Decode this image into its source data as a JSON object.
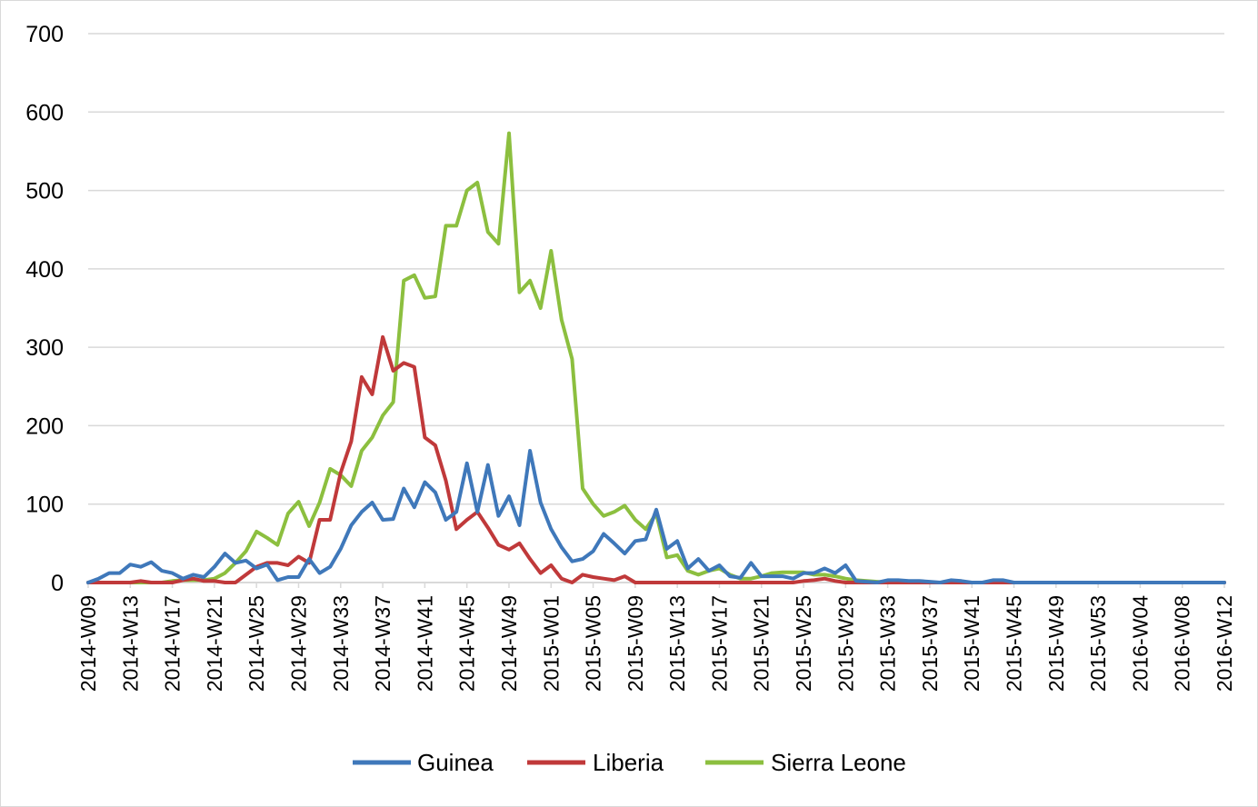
{
  "chart_data": {
    "type": "line",
    "title": "",
    "xlabel": "",
    "ylabel": "",
    "ylim": [
      0,
      700
    ],
    "y_ticks": [
      0,
      100,
      200,
      300,
      400,
      500,
      600,
      700
    ],
    "grid": "horizontal",
    "legend": "bottom",
    "x": [
      "2014-W09",
      "2014-W10",
      "2014-W11",
      "2014-W12",
      "2014-W13",
      "2014-W14",
      "2014-W15",
      "2014-W16",
      "2014-W17",
      "2014-W18",
      "2014-W19",
      "2014-W20",
      "2014-W21",
      "2014-W22",
      "2014-W23",
      "2014-W24",
      "2014-W25",
      "2014-W26",
      "2014-W27",
      "2014-W28",
      "2014-W29",
      "2014-W30",
      "2014-W31",
      "2014-W32",
      "2014-W33",
      "2014-W34",
      "2014-W35",
      "2014-W36",
      "2014-W37",
      "2014-W38",
      "2014-W39",
      "2014-W40",
      "2014-W41",
      "2014-W42",
      "2014-W43",
      "2014-W44",
      "2014-W45",
      "2014-W46",
      "2014-W47",
      "2014-W48",
      "2014-W49",
      "2014-W50",
      "2014-W51",
      "2014-W52",
      "2015-W01",
      "2015-W02",
      "2015-W03",
      "2015-W04",
      "2015-W05",
      "2015-W06",
      "2015-W07",
      "2015-W08",
      "2015-W09",
      "2015-W10",
      "2015-W11",
      "2015-W12",
      "2015-W13",
      "2015-W14",
      "2015-W15",
      "2015-W16",
      "2015-W17",
      "2015-W18",
      "2015-W19",
      "2015-W20",
      "2015-W21",
      "2015-W22",
      "2015-W23",
      "2015-W24",
      "2015-W25",
      "2015-W26",
      "2015-W27",
      "2015-W28",
      "2015-W29",
      "2015-W30",
      "2015-W31",
      "2015-W32",
      "2015-W33",
      "2015-W34",
      "2015-W35",
      "2015-W36",
      "2015-W37",
      "2015-W38",
      "2015-W39",
      "2015-W40",
      "2015-W41",
      "2015-W42",
      "2015-W43",
      "2015-W44",
      "2015-W45",
      "2015-W46",
      "2015-W47",
      "2015-W48",
      "2015-W49",
      "2015-W50",
      "2015-W51",
      "2015-W52",
      "2015-W53",
      "2016-W01",
      "2016-W02",
      "2016-W03",
      "2016-W04",
      "2016-W05",
      "2016-W06",
      "2016-W07",
      "2016-W08",
      "2016-W09",
      "2016-W10",
      "2016-W11",
      "2016-W12"
    ],
    "x_tick_labels": [
      "2014-W09",
      "2014-W13",
      "2014-W17",
      "2014-W21",
      "2014-W25",
      "2014-W29",
      "2014-W33",
      "2014-W37",
      "2014-W41",
      "2014-W45",
      "2014-W49",
      "2015-W01",
      "2015-W05",
      "2015-W09",
      "2015-W13",
      "2015-W17",
      "2015-W21",
      "2015-W25",
      "2015-W29",
      "2015-W33",
      "2015-W37",
      "2015-W41",
      "2015-W45",
      "2015-W49",
      "2015-W53",
      "2016-W04",
      "2016-W08",
      "2016-W12"
    ],
    "series": [
      {
        "name": "Guinea",
        "color": "#3f78ba",
        "values": [
          0,
          5,
          12,
          12,
          23,
          20,
          26,
          15,
          12,
          5,
          10,
          7,
          20,
          37,
          25,
          28,
          18,
          23,
          3,
          7,
          7,
          30,
          12,
          20,
          43,
          73,
          90,
          102,
          80,
          81,
          120,
          96,
          128,
          115,
          80,
          90,
          152,
          90,
          150,
          85,
          110,
          73,
          168,
          102,
          68,
          45,
          27,
          30,
          40,
          62,
          50,
          37,
          53,
          55,
          93,
          43,
          53,
          18,
          30,
          15,
          22,
          8,
          6,
          25,
          8,
          8,
          8,
          5,
          12,
          12,
          18,
          12,
          22,
          2,
          1,
          0,
          3,
          3,
          2,
          2,
          1,
          0,
          3,
          2,
          0,
          0,
          3,
          3,
          0,
          0,
          0,
          0,
          0,
          0,
          0,
          0,
          0,
          0,
          0,
          0,
          0,
          0,
          0,
          0,
          0,
          0,
          0,
          0,
          0
        ]
      },
      {
        "name": "Liberia",
        "color": "#c0393a",
        "values": [
          0,
          0,
          0,
          0,
          0,
          2,
          0,
          0,
          0,
          3,
          5,
          2,
          2,
          0,
          0,
          10,
          20,
          25,
          25,
          22,
          33,
          25,
          80,
          80,
          140,
          180,
          262,
          240,
          313,
          270,
          280,
          275,
          185,
          175,
          130,
          68,
          80,
          90,
          70,
          48,
          42,
          50,
          30,
          12,
          22,
          5,
          0,
          10,
          7,
          5,
          3,
          8,
          0,
          0,
          0,
          0,
          0,
          0,
          0,
          0,
          0,
          0,
          0,
          0,
          0,
          0,
          0,
          0,
          2,
          3,
          5,
          2,
          0,
          0,
          0,
          0,
          0,
          0,
          0,
          0,
          0,
          0,
          0,
          0,
          0,
          0,
          0,
          0,
          0,
          0,
          0,
          0,
          0,
          0,
          0,
          0,
          0,
          0,
          0,
          0,
          0,
          0,
          0,
          0,
          0,
          0,
          0,
          0,
          0
        ]
      },
      {
        "name": "Sierra Leone",
        "color": "#8cbf3f",
        "values": [
          0,
          0,
          0,
          0,
          0,
          0,
          0,
          0,
          2,
          3,
          3,
          3,
          5,
          12,
          25,
          40,
          65,
          57,
          48,
          88,
          103,
          72,
          102,
          145,
          137,
          123,
          168,
          185,
          213,
          230,
          385,
          392,
          363,
          365,
          455,
          455,
          500,
          510,
          447,
          432,
          573,
          370,
          385,
          350,
          423,
          335,
          285,
          120,
          100,
          85,
          90,
          98,
          80,
          68,
          88,
          32,
          35,
          15,
          10,
          15,
          18,
          10,
          5,
          5,
          8,
          12,
          13,
          13,
          13,
          10,
          10,
          8,
          5,
          3,
          2,
          1,
          0,
          0,
          0,
          0,
          0,
          0,
          0,
          0,
          0,
          0,
          0,
          0,
          0,
          0,
          0,
          0,
          0,
          0,
          0,
          0,
          0,
          0,
          0,
          0,
          0,
          0,
          0,
          0,
          0,
          0,
          0,
          0,
          0
        ]
      }
    ]
  }
}
